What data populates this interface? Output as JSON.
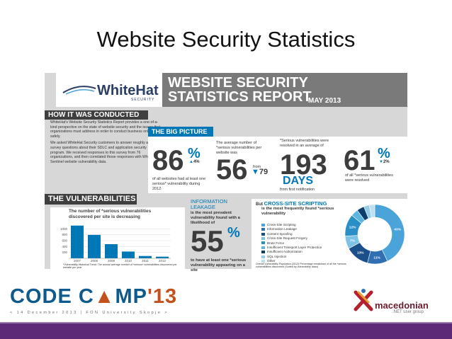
{
  "slide": {
    "title": "Website Security Statistics"
  },
  "infographic": {
    "logo": {
      "name": "WhiteHat",
      "tagline": "SECURITY"
    },
    "banner": {
      "line1": "WEBSITE SECURITY",
      "line2": "STATISTICS REPORT",
      "date": "MAY 2013"
    },
    "conducted": {
      "heading": "HOW IT WAS CONDUCTED",
      "para1": "WhiteHat's Website Security Statistics Report provides a one-of-a-kind perspective on the state of website security and the issues that organizations must address in order to conduct business online safely.",
      "para2": "We asked WhiteHat Security customers to answer roughly a dozen survey questions about their SDLC and application security program. We received responses to this survey from 76 organizations, and then correlated those responses with WhiteHat Sentinel website vulnerability data."
    },
    "big_picture": {
      "heading": "THE BIG PICTURE",
      "stat1": {
        "value": "86",
        "unit": "%",
        "change": "4%",
        "caption": "of all websites had at least one serious* vulnerability during 2012."
      },
      "stat2": {
        "intro": "The average number of *serious vulnerabilities per website was",
        "value": "56",
        "from_label": "from",
        "from_value": "79"
      },
      "stat3": {
        "intro": "*Serious vulnerabilities were resolved in an average of",
        "value": "193",
        "unit": "DAYS",
        "caption": "from first notification"
      },
      "stat4": {
        "value": "61",
        "unit": "%",
        "change": "2%",
        "caption": "of all *serious vulnerabilities were resolved"
      }
    },
    "vulnerabilities": {
      "heading": "THE VULNERABILITIES",
      "subtitle": "The number of *serious vulnerabilities discovered per site is decreasing",
      "footnote": "*Vulnerability Historical Trend: The annual average number of *serious* vulnerabilities discovered per website per year"
    },
    "info_leakage": {
      "title_line1": "INFORMATION",
      "title_line2": "LEAKAGE",
      "text": "is the most prevalent vulnerability found with a likelihood of",
      "value": "55",
      "unit": "%",
      "caption": "to have at least one *serious vulnerability appearing on a site"
    },
    "xss": {
      "prefix": "But",
      "title": "CROSS-SITE SCRIPTING",
      "text": "is the most frequently found *serious vulnerability",
      "legend": [
        "Cross-Site Scripting",
        "Information Leakage",
        "Content Spoofing",
        "Cross-Site Request Forgery",
        "Brute Force",
        "Insufficient Transport Layer Protection",
        "Insufficient Authorization",
        "SQL Injection",
        "Other"
      ],
      "legend_colors": [
        "#4aa3d9",
        "#2f6fb2",
        "#1b4f8a",
        "#7ec3e6",
        "#2a8fc7",
        "#5db6e0",
        "#0f3d6e",
        "#96cdea",
        "#bfe0f2"
      ],
      "footnote": "Overall Vulnerability Population (2012) Percentage breakdown of all the *serious vulnerabilities discovered (Sorted by vulnerability class)",
      "donut_labels": [
        "43%",
        "11%",
        "13%",
        "7%",
        "12%"
      ]
    }
  },
  "chart_data": [
    {
      "type": "bar",
      "categories": [
        "2007",
        "2008",
        "2009",
        "2010",
        "2011",
        "2012"
      ],
      "values": [
        1110,
        795,
        480,
        230,
        79,
        56
      ],
      "ylabel": "",
      "yticks": [
        "1000",
        "800",
        "600",
        "400",
        "200"
      ],
      "ylim": [
        0,
        1200
      ],
      "grid": true
    },
    {
      "type": "pie",
      "categories": [
        "Cross-Site Scripting",
        "Information Leakage",
        "Content Spoofing",
        "Cross-Site Request Forgery",
        "Brute Force",
        "Insufficient Transport Layer Protection",
        "Insufficient Authorization",
        "SQL Injection",
        "Other"
      ],
      "values": [
        43,
        11,
        13,
        7,
        12,
        4,
        4,
        3,
        3
      ]
    }
  ],
  "footer": {
    "event_part1": "CODE C",
    "event_part2": "MP",
    "event_year": "'13",
    "event_details": "< 14 December 2013 | FON University Skopje >",
    "group_name": "macedonian",
    "group_sub": ".NET user group"
  }
}
